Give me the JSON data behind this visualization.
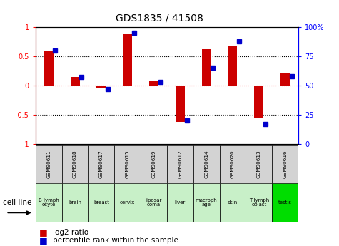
{
  "title": "GDS1835 / 41508",
  "gsm_labels": [
    "GSM90611",
    "GSM90618",
    "GSM90617",
    "GSM90615",
    "GSM90619",
    "GSM90612",
    "GSM90614",
    "GSM90620",
    "GSM90613",
    "GSM90616"
  ],
  "cell_labels": [
    "B lymph\nocyte",
    "brain",
    "breast",
    "cervix",
    "liposar\ncoma",
    "liver",
    "macroph\nage",
    "skin",
    "T lymph\noblast",
    "testis"
  ],
  "cell_colors": [
    "#c8f0c8",
    "#c8f0c8",
    "#c8f0c8",
    "#c8f0c8",
    "#c8f0c8",
    "#c8f0c8",
    "#c8f0c8",
    "#c8f0c8",
    "#c8f0c8",
    "#00dd00"
  ],
  "log2_ratio": [
    0.58,
    0.15,
    -0.05,
    0.88,
    0.07,
    -0.62,
    0.62,
    0.68,
    -0.55,
    0.22
  ],
  "percentile_rank": [
    80,
    57,
    47,
    95,
    53,
    20,
    65,
    88,
    17,
    58
  ],
  "ylim": [
    -1,
    1
  ],
  "bar_color": "#cc0000",
  "dot_color": "#0000cc",
  "gsm_box_color": "#d3d3d3",
  "background_color": "#ffffff"
}
